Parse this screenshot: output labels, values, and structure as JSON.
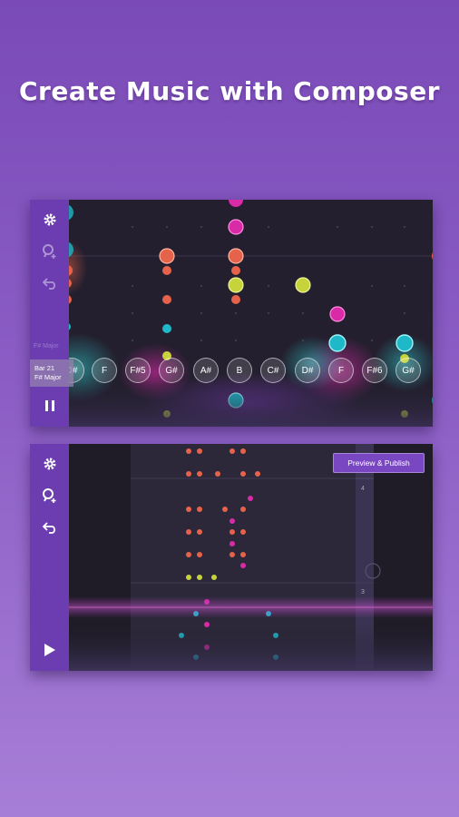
{
  "headline": "Create Music with Composer",
  "colors": {
    "background_top": "#7a4bb7",
    "background_bottom": "#a77ed7",
    "sidebar": "#6c3db0",
    "canvas": "#231f2e",
    "note_orange": "#e5634a",
    "note_magenta": "#d92aa8",
    "note_yellow": "#c7d33a",
    "note_teal": "#1fb8c8"
  },
  "screen1": {
    "icons": [
      "gear-icon",
      "zoom-add-icon",
      "undo-icon",
      "pause-icon"
    ],
    "bar_label": "Bar 21",
    "key_label": "F# Major",
    "faint_key_label": "F# Major",
    "notes": [
      "D#",
      "F",
      "F#5",
      "G#",
      "A#",
      "B",
      "C#",
      "D#",
      "F",
      "F#6",
      "G#"
    ]
  },
  "screen2": {
    "icons": [
      "gear-icon",
      "zoom-add-icon",
      "undo-icon",
      "play-icon"
    ],
    "publish_label": "Preview & Publish",
    "measures": [
      "4",
      "3"
    ]
  }
}
